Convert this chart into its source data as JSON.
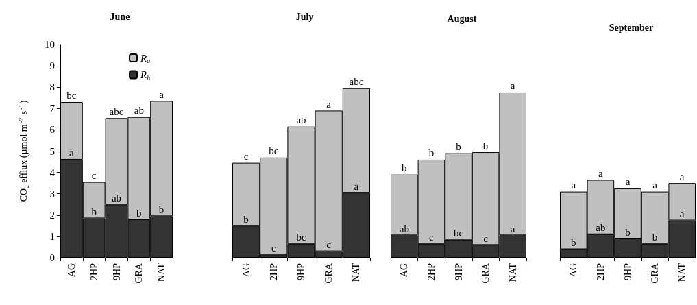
{
  "chart_data": [
    {
      "type": "bar",
      "stacked": true,
      "title": "June",
      "ylabel": "CO$_{2}$ efflux (µmol m$^{-2}$ s$^{-1}$)",
      "categories": [
        "AG",
        "2HP",
        "9HP",
        "GRA",
        "NAT"
      ],
      "series": [
        {
          "name": "R$_{h}$",
          "color": "#333333",
          "values": [
            4.6,
            1.85,
            2.5,
            1.8,
            1.95
          ]
        },
        {
          "name": "R$_{a}$",
          "color": "#c0c0c0",
          "values": [
            2.7,
            1.7,
            4.05,
            4.8,
            5.4
          ]
        }
      ],
      "ylim": [
        0,
        10
      ],
      "yticks": [
        0,
        1,
        2,
        3,
        4,
        5,
        6,
        7,
        8,
        9,
        10
      ],
      "legend": "top",
      "annotations": [
        {
          "text": "bc",
          "x": "AG",
          "y": 7.3
        },
        {
          "text": "c",
          "x": "2HP",
          "y": 3.55
        },
        {
          "text": "abc",
          "x": "9HP",
          "y": 6.55
        },
        {
          "text": "ab",
          "x": "GRA",
          "y": 6.6
        },
        {
          "text": "a",
          "x": "NAT",
          "y": 7.35
        },
        {
          "text": "a",
          "x": "AG",
          "y": 4.6
        },
        {
          "text": "b",
          "x": "2HP",
          "y": 1.85
        },
        {
          "text": "ab",
          "x": "9HP",
          "y": 2.5
        },
        {
          "text": "b",
          "x": "GRA",
          "y": 1.8
        },
        {
          "text": "b",
          "x": "NAT",
          "y": 1.95
        }
      ]
    },
    {
      "type": "bar",
      "stacked": true,
      "title": "July",
      "categories": [
        "AG",
        "2HP",
        "9HP",
        "GRA",
        "NAT"
      ],
      "series": [
        {
          "color": "#333333",
          "values": [
            1.5,
            0.15,
            0.65,
            0.3,
            3.05
          ]
        },
        {
          "color": "#c0c0c0",
          "values": [
            2.95,
            4.55,
            5.5,
            6.6,
            4.9
          ]
        }
      ],
      "ylim": [
        0,
        10
      ],
      "yticks": [
        0,
        1,
        2,
        3,
        4,
        5,
        6,
        7,
        8,
        9,
        10
      ],
      "tick_labels": "x",
      "annotations": [
        {
          "text": "c",
          "x": "AG",
          "y": 4.45
        },
        {
          "text": "bc",
          "x": "2HP",
          "y": 4.7
        },
        {
          "text": "ab",
          "x": "9HP",
          "y": 6.15
        },
        {
          "text": "a",
          "x": "GRA",
          "y": 6.9
        },
        {
          "text": "abc",
          "x": "NAT",
          "y": 7.95
        },
        {
          "text": "b",
          "x": "AG",
          "y": 1.5
        },
        {
          "text": "c",
          "x": "2HP",
          "y": 0.15
        },
        {
          "text": "bc",
          "x": "9HP",
          "y": 0.65
        },
        {
          "text": "c",
          "x": "GRA",
          "y": 0.3
        },
        {
          "text": "a",
          "x": "NAT",
          "y": 3.05
        }
      ]
    },
    {
      "type": "bar",
      "stacked": true,
      "title": "August",
      "categories": [
        "AG",
        "2HP",
        "9HP",
        "GRA",
        "NAT"
      ],
      "series": [
        {
          "color": "#333333",
          "values": [
            1.05,
            0.65,
            0.85,
            0.6,
            1.05
          ]
        },
        {
          "color": "#c0c0c0",
          "values": [
            2.85,
            3.95,
            4.05,
            4.35,
            6.7
          ]
        }
      ],
      "ylim": [
        0,
        10
      ],
      "yticks": [
        0,
        1,
        2,
        3,
        4,
        5,
        6,
        7,
        8,
        9,
        10
      ],
      "tick_labels": "x",
      "annotations": [
        {
          "text": "b",
          "x": "AG",
          "y": 3.9
        },
        {
          "text": "b",
          "x": "2HP",
          "y": 4.6
        },
        {
          "text": "b",
          "x": "9HP",
          "y": 4.9
        },
        {
          "text": "b",
          "x": "GRA",
          "y": 4.95
        },
        {
          "text": "a",
          "x": "NAT",
          "y": 7.75
        },
        {
          "text": "ab",
          "x": "AG",
          "y": 1.05
        },
        {
          "text": "c",
          "x": "2HP",
          "y": 0.65
        },
        {
          "text": "bc",
          "x": "9HP",
          "y": 0.85
        },
        {
          "text": "c",
          "x": "GRA",
          "y": 0.6
        },
        {
          "text": "a",
          "x": "NAT",
          "y": 1.05
        }
      ]
    },
    {
      "type": "bar",
      "stacked": true,
      "title": "September",
      "categories": [
        "AG",
        "2HP",
        "9HP",
        "GRA",
        "NAT"
      ],
      "series": [
        {
          "color": "#333333",
          "values": [
            0.4,
            1.1,
            0.9,
            0.65,
            1.75
          ]
        },
        {
          "color": "#c0c0c0",
          "values": [
            2.7,
            2.55,
            2.35,
            2.45,
            1.75
          ]
        }
      ],
      "ylim": [
        0,
        10
      ],
      "yticks": [
        0,
        1,
        2,
        3,
        4,
        5,
        6,
        7,
        8,
        9,
        10
      ],
      "tick_labels": "x",
      "annotations": [
        {
          "text": "a",
          "x": "AG",
          "y": 3.1
        },
        {
          "text": "a",
          "x": "2HP",
          "y": 3.65
        },
        {
          "text": "a",
          "x": "9HP",
          "y": 3.25
        },
        {
          "text": "a",
          "x": "GRA",
          "y": 3.1
        },
        {
          "text": "a",
          "x": "NAT",
          "y": 3.5
        },
        {
          "text": "b",
          "x": "AG",
          "y": 0.4
        },
        {
          "text": "ab",
          "x": "2HP",
          "y": 1.1
        },
        {
          "text": "b",
          "x": "9HP",
          "y": 0.9
        },
        {
          "text": "b",
          "x": "GRA",
          "y": 0.65
        },
        {
          "text": "a",
          "x": "NAT",
          "y": 1.75
        }
      ]
    }
  ]
}
